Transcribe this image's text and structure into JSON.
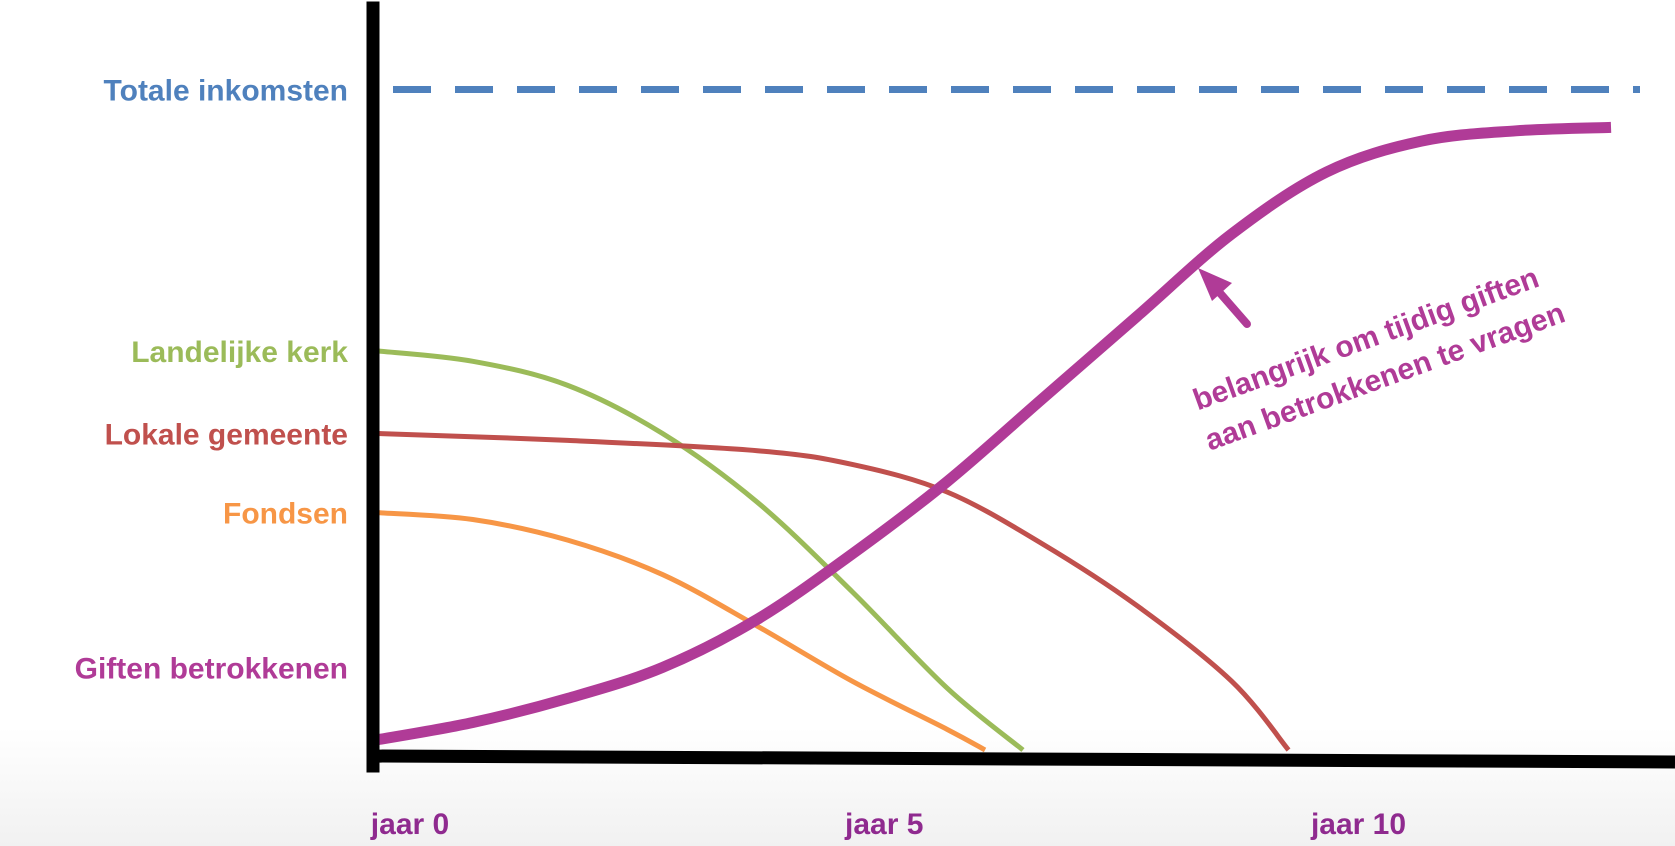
{
  "chart_data": {
    "type": "line",
    "title": "",
    "xlabel": "",
    "ylabel": "",
    "x_ticks": [
      {
        "x": 0,
        "label": "jaar 0"
      },
      {
        "x": 5,
        "label": "jaar 5"
      },
      {
        "x": 10,
        "label": "jaar 10"
      }
    ],
    "xlim": [
      0,
      13.2
    ],
    "ylim": [
      0,
      100
    ],
    "grid": false,
    "reference_line": {
      "name": "Totale inkomsten",
      "value": 96,
      "color": "#4f81bd",
      "style": "dashed"
    },
    "series": [
      {
        "name": "Landelijke kerk",
        "color": "#9bbb59",
        "width": 5,
        "x": [
          0,
          1,
          2,
          3,
          4,
          5,
          6,
          6.8
        ],
        "y": [
          58,
          56.5,
          53,
          46,
          36,
          23,
          9,
          0
        ]
      },
      {
        "name": "Lokale gemeente",
        "color": "#c0504d",
        "width": 5,
        "x": [
          0,
          2,
          4,
          5,
          6,
          7,
          8,
          9,
          9.6
        ],
        "y": [
          46,
          45,
          43.5,
          41.5,
          37.5,
          30,
          21,
          10,
          0
        ]
      },
      {
        "name": "Fondsen",
        "color": "#f79646",
        "width": 5,
        "x": [
          0,
          1,
          2,
          3,
          4,
          5,
          6,
          6.4
        ],
        "y": [
          34.5,
          33.5,
          30.5,
          25.5,
          18,
          10,
          3,
          0
        ]
      },
      {
        "name": "Giften betrokkenen",
        "color": "#b03b97",
        "width": 11,
        "x": [
          0,
          1,
          2,
          3,
          4,
          5,
          6,
          7,
          8,
          9,
          10,
          11,
          12,
          13
        ],
        "y": [
          1.5,
          4,
          7.5,
          12,
          19,
          28.5,
          39,
          51,
          63,
          75,
          84,
          88.5,
          90,
          90.5
        ]
      }
    ],
    "annotations": [
      {
        "text_lines": [
          "belangrijk om tijdig giften",
          "aan betrokkenen te vragen"
        ],
        "color": "#b03b97",
        "arrow": "up-left"
      }
    ]
  }
}
